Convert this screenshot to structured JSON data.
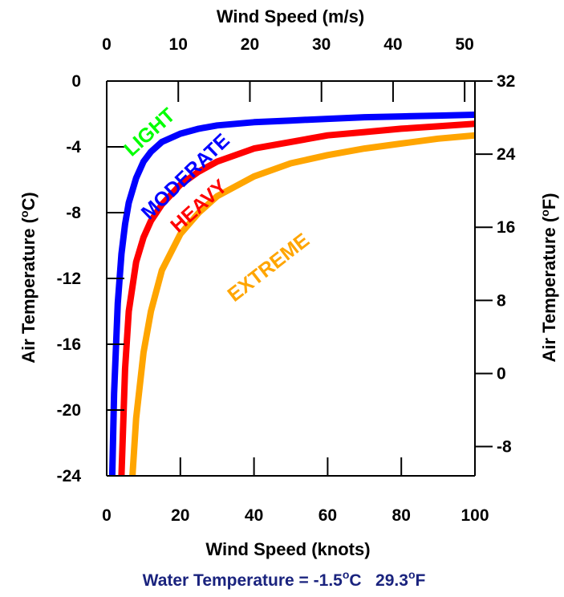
{
  "chart_data": {
    "type": "line",
    "x_bottom": {
      "label": "Wind Speed (knots)",
      "ticks": [
        0,
        20,
        40,
        60,
        80,
        100
      ],
      "range": [
        0,
        100
      ]
    },
    "x_top": {
      "label": "Wind Speed (m/s)",
      "ticks": [
        0,
        10,
        20,
        30,
        40,
        50
      ],
      "range": [
        0,
        51.44
      ]
    },
    "y_left": {
      "label_parts": [
        "Air Temperature (",
        "o",
        "C)"
      ],
      "ticks": [
        0,
        -4,
        -8,
        -12,
        -16,
        -20,
        -24
      ],
      "range": [
        -24,
        0
      ]
    },
    "y_right": {
      "label_parts": [
        "Air Temperature (",
        "o",
        "F)"
      ],
      "ticks": [
        32,
        24,
        16,
        8,
        0,
        -8
      ],
      "range": [
        -11.2,
        32
      ]
    },
    "grid": false,
    "series": [
      {
        "name": "LIGHT",
        "color": "#00ff00",
        "values": []
      },
      {
        "name": "MODERATE",
        "color": "#0000ff",
        "x": [
          1.5,
          2,
          3,
          4,
          5,
          6,
          8,
          10,
          12,
          15,
          20,
          25,
          30,
          40,
          50,
          60,
          70,
          80,
          90,
          100
        ],
        "y": [
          -24,
          -19,
          -13.5,
          -10.5,
          -8.7,
          -7.4,
          -5.9,
          -4.9,
          -4.3,
          -3.7,
          -3.2,
          -2.9,
          -2.7,
          -2.5,
          -2.4,
          -2.3,
          -2.2,
          -2.15,
          -2.1,
          -2.05
        ]
      },
      {
        "name": "HEAVY",
        "color": "#ff0000",
        "x": [
          4,
          5,
          6,
          8,
          10,
          12,
          15,
          20,
          25,
          30,
          40,
          50,
          60,
          70,
          80,
          90,
          100
        ],
        "y": [
          -24,
          -17.5,
          -14,
          -11,
          -9.5,
          -8.5,
          -7.5,
          -6.3,
          -5.5,
          -4.9,
          -4.1,
          -3.7,
          -3.3,
          -3.1,
          -2.9,
          -2.75,
          -2.6
        ]
      },
      {
        "name": "EXTREME",
        "color": "#ffa500",
        "x": [
          7,
          8,
          10,
          12,
          15,
          20,
          25,
          30,
          40,
          50,
          60,
          70,
          80,
          90,
          100
        ],
        "y": [
          -24,
          -20.5,
          -16.5,
          -14,
          -11.5,
          -9.3,
          -8,
          -7,
          -5.8,
          -5,
          -4.5,
          -4.1,
          -3.8,
          -3.5,
          -3.3
        ]
      }
    ]
  },
  "footer": {
    "prefix": "Water Temperature = -1.5",
    "sup1": "o",
    "unit1": "C   29.3",
    "sup2": "o",
    "unit2": "F"
  }
}
